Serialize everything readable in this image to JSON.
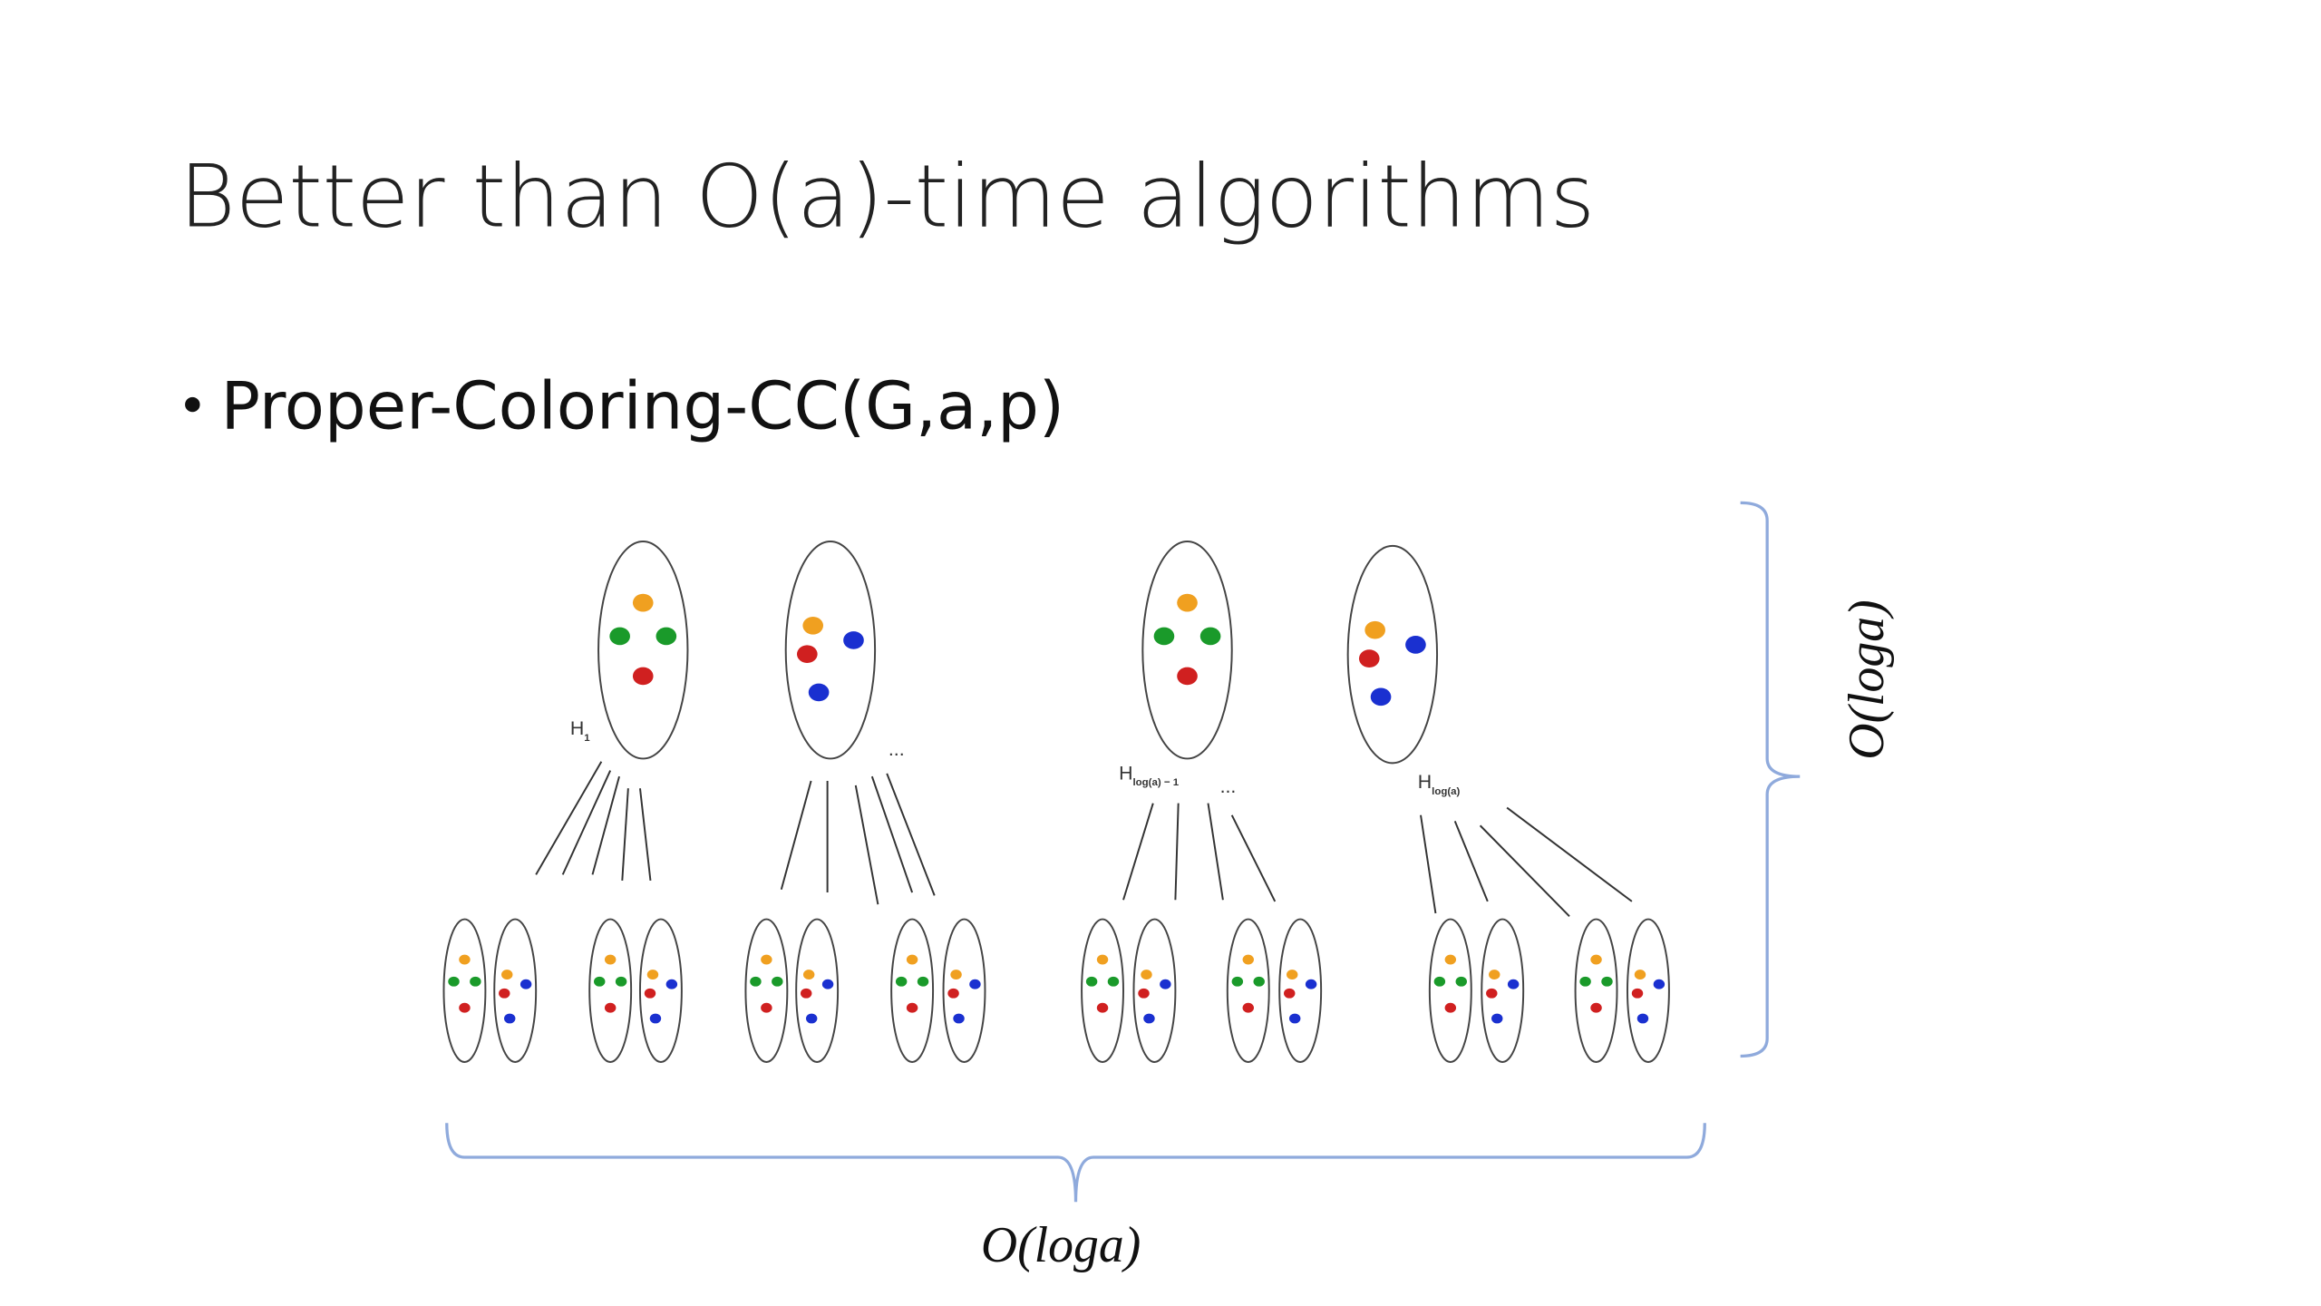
{
  "title": "Better than O(a)-time algorithms",
  "bullets": [
    "Proper-Coloring-CC(G,a,p)"
  ],
  "diagram": {
    "labels": [
      {
        "main": "H",
        "sub": "1"
      },
      {
        "main": "..."
      },
      {
        "main": "H",
        "sub": "log(a) − 1"
      },
      {
        "main": "..."
      },
      {
        "main": "H",
        "sub": "log(a)"
      }
    ],
    "vertical_brace_label": "O(loga)",
    "horizontal_brace_label": "O(loga)"
  }
}
